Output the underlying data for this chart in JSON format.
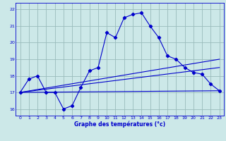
{
  "title": "Graphe des températures (°c)",
  "bg_color": "#cce8e8",
  "line_color": "#0000cc",
  "grid_color": "#99bbbb",
  "xlim": [
    -0.5,
    23.5
  ],
  "ylim": [
    15.6,
    22.4
  ],
  "yticks": [
    16,
    17,
    18,
    19,
    20,
    21,
    22
  ],
  "xticks": [
    0,
    1,
    2,
    3,
    4,
    5,
    6,
    7,
    8,
    9,
    10,
    11,
    12,
    13,
    14,
    15,
    16,
    17,
    18,
    19,
    20,
    21,
    22,
    23
  ],
  "main_x": [
    0,
    1,
    2,
    3,
    4,
    5,
    6,
    7,
    8,
    9,
    10,
    11,
    12,
    13,
    14,
    15,
    16,
    17,
    18,
    19,
    20,
    21,
    22,
    23
  ],
  "main_y": [
    17.0,
    17.8,
    18.0,
    17.0,
    17.0,
    16.0,
    16.2,
    17.3,
    18.3,
    18.5,
    20.6,
    20.3,
    21.5,
    21.7,
    21.8,
    21.0,
    20.3,
    19.2,
    19.0,
    18.5,
    18.2,
    18.1,
    17.5,
    17.1
  ],
  "line1_x": [
    0,
    23
  ],
  "line1_y": [
    17.0,
    17.1
  ],
  "line2_x": [
    0,
    23
  ],
  "line2_y": [
    17.0,
    18.5
  ],
  "line3_x": [
    0,
    23
  ],
  "line3_y": [
    17.0,
    19.0
  ]
}
